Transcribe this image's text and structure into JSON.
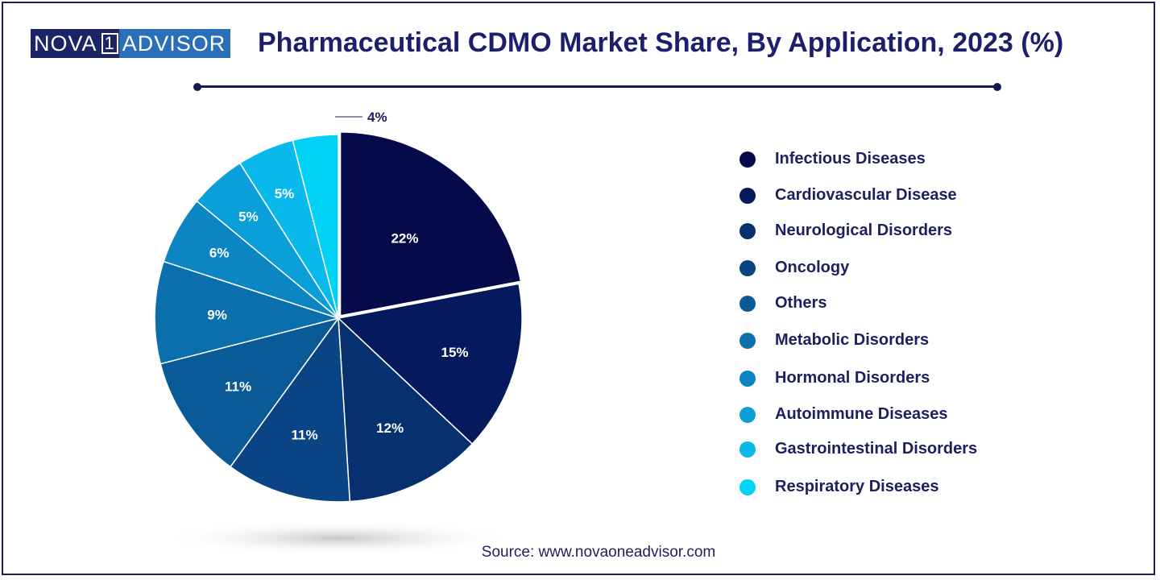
{
  "logo": {
    "left": "NOVA",
    "one": "1",
    "right": "ADVISOR"
  },
  "title": "Pharmaceutical CDMO Market Share, By Application, 2023 (%)",
  "source": "Source: www.novaoneadvisor.com",
  "chart_data": {
    "type": "pie",
    "title": "Pharmaceutical CDMO Market Share, By Application, 2023 (%)",
    "unit": "%",
    "slices": [
      {
        "name": "Infectious Diseases",
        "value": 22,
        "label": "22%",
        "color": "#050a4a"
      },
      {
        "name": "Cardiovascular Disease",
        "value": 15,
        "label": "15%",
        "color": "#041a5c"
      },
      {
        "name": "Neurological Disorders",
        "value": 12,
        "label": "12%",
        "color": "#07306e"
      },
      {
        "name": "Oncology",
        "value": 11,
        "label": "11%",
        "color": "#0a4484"
      },
      {
        "name": "Others",
        "value": 11,
        "label": "11%",
        "color": "#0b5a98"
      },
      {
        "name": "Metabolic Disorders",
        "value": 9,
        "label": "9%",
        "color": "#0b6fab"
      },
      {
        "name": "Hormonal Disorders",
        "value": 6,
        "label": "6%",
        "color": "#0b86c3"
      },
      {
        "name": "Autoimmune Diseases",
        "value": 5,
        "label": "5%",
        "color": "#0a9fd8"
      },
      {
        "name": "Gastrointestinal Disorders",
        "value": 5,
        "label": "5%",
        "color": "#09b9eb"
      },
      {
        "name": "Respiratory Diseases",
        "value": 4,
        "label": "4%",
        "color": "#00d2f6"
      }
    ],
    "legend": "right"
  }
}
